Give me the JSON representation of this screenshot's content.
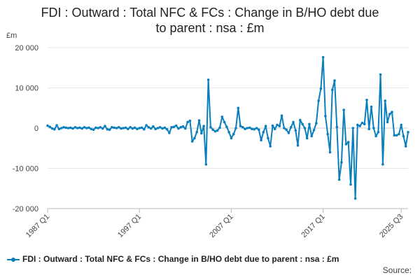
{
  "chart_data": {
    "type": "line",
    "title": "FDI : Outward : Total NFC & FCs : Change in B/HO debt due to parent : nsa : £m",
    "title_lines": [
      "FDI : Outward : Total NFC & FCs : Change in B/HO debt due",
      "to parent : nsa : £m"
    ],
    "ylabel": "£m",
    "xlabel": "",
    "ylim": [
      -20000,
      20000
    ],
    "yticks": [
      20000,
      10000,
      0,
      -10000,
      -20000
    ],
    "ytick_labels": [
      "20 000",
      "10 000",
      "0",
      "-10 000",
      "-20 000"
    ],
    "xticks": [
      "1987 Q1",
      "1997 Q1",
      "2007 Q1",
      "2017 Q1",
      "2025 Q3"
    ],
    "xtick_index": [
      0,
      40,
      80,
      120,
      154
    ],
    "grid": "horizontal",
    "legend_position": "bottom",
    "color": "#0a7fbd",
    "series": [
      {
        "name": "FDI : Outward : Total NFC & FCs : Change in B/HO debt due to parent : nsa : £m",
        "x_start": "1987 Q1",
        "values": [
          600,
          300,
          -100,
          -300,
          700,
          -200,
          0,
          200,
          100,
          0,
          100,
          -100,
          200,
          0,
          100,
          -100,
          200,
          0,
          100,
          -200,
          -400,
          100,
          0,
          200,
          -100,
          500,
          -300,
          -400,
          200,
          100,
          0,
          200,
          -100,
          0,
          100,
          -200,
          200,
          -100,
          100,
          -200,
          0,
          100,
          -300,
          700,
          200,
          -100,
          400,
          -200,
          0,
          200,
          -100,
          100,
          -300,
          -1200,
          200,
          300,
          600,
          -100,
          200,
          400,
          -100,
          1500,
          1800,
          -3300,
          -2500,
          -1000,
          1900,
          -1300,
          500,
          -9000,
          12000,
          200,
          -400,
          -800,
          -600,
          100,
          2800,
          1500,
          300,
          -1000,
          -2500,
          -1500,
          0,
          5000,
          500,
          200,
          -200,
          0,
          100,
          -200,
          -300,
          0,
          -400,
          -3000,
          -1000,
          500,
          -2500,
          -4500,
          600,
          -200,
          800,
          500,
          3100,
          0,
          -400,
          -1200,
          200,
          1500,
          -600,
          -4300,
          2000,
          1000,
          0,
          -2500,
          1000,
          -2000,
          -500,
          1200,
          6800,
          9800,
          17600,
          3000,
          -1500,
          -6000,
          9500,
          11800,
          300,
          -12800,
          -8500,
          4500,
          -4000,
          -3500,
          -14000,
          0,
          -17500,
          800,
          500,
          1300,
          1000,
          7000,
          -200,
          5300,
          0,
          -2000,
          -1000,
          13300,
          -9000,
          6800,
          1500,
          3500,
          4000,
          -1800,
          -1800,
          -1500,
          800,
          -2000,
          -4500,
          -1000
        ]
      }
    ]
  },
  "legend": {
    "label": "FDI : Outward : Total NFC & FCs : Change in B/HO debt due to parent : nsa : £m"
  },
  "source": {
    "label": "Source:"
  }
}
